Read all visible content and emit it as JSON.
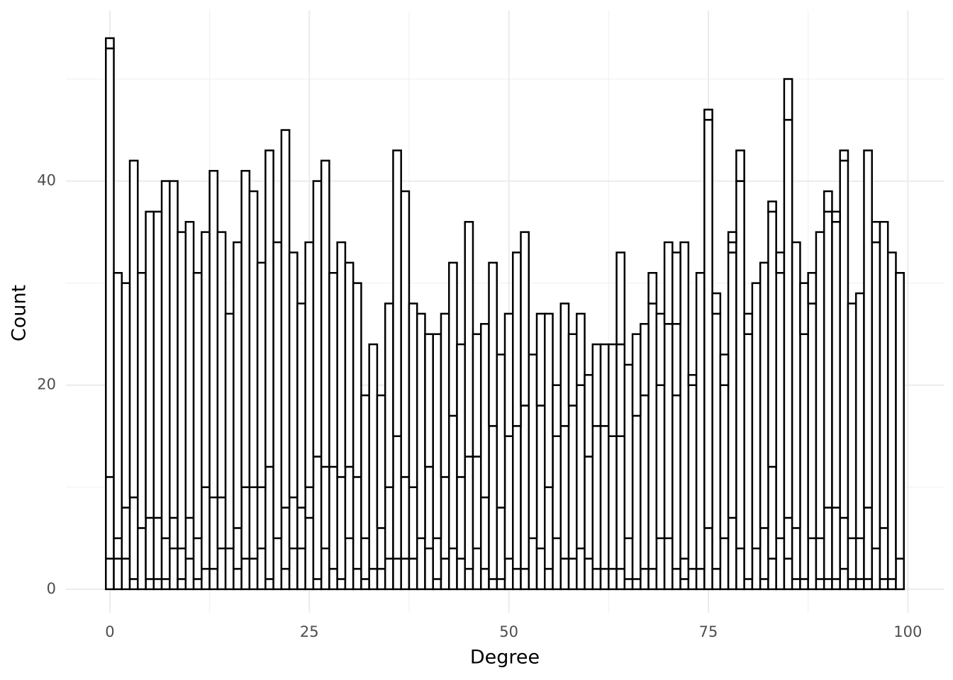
{
  "chart_data": {
    "type": "histogram",
    "x_label": "Degree",
    "y_label": "Count",
    "bins": [
      -0.5,
      0.5,
      1.5,
      2.5,
      3.5,
      4.5,
      5.5,
      6.5,
      7.5,
      8.5,
      9.5,
      10.5,
      11.5,
      12.5,
      13.5,
      14.5,
      15.5,
      16.5,
      17.5,
      18.5,
      19.5,
      20.5,
      21.5,
      22.5,
      23.5,
      24.5,
      25.5,
      26.5,
      27.5,
      28.5,
      29.5,
      30.5,
      31.5,
      32.5,
      33.5,
      34.5,
      35.5,
      36.5,
      37.5,
      38.5,
      39.5,
      40.5,
      41.5,
      42.5,
      43.5,
      44.5,
      45.5,
      46.5,
      47.5,
      48.5,
      49.5,
      50.5,
      51.5,
      52.5,
      53.5,
      54.5,
      55.5,
      56.5,
      57.5,
      58.5,
      59.5,
      60.5,
      61.5,
      62.5,
      63.5,
      64.5,
      65.5,
      66.5,
      67.5,
      68.5,
      69.5,
      70.5,
      71.5,
      72.5,
      73.5,
      74.5,
      75.5,
      76.5,
      77.5,
      78.5,
      79.5,
      80.5,
      81.5,
      82.5,
      83.5,
      84.5,
      85.5,
      86.5,
      87.5,
      88.5,
      89.5,
      90.5,
      91.5,
      92.5,
      93.5,
      94.5,
      95.5,
      96.5,
      97.5,
      98.5,
      99.5
    ],
    "series": [
      {
        "color": "#ffffff",
        "values": [
          3,
          3,
          3,
          1,
          0,
          1,
          1,
          1,
          4,
          1,
          3,
          1,
          2,
          2,
          4,
          4,
          2,
          3,
          3,
          4,
          1,
          5,
          2,
          4,
          4,
          7,
          1,
          4,
          2,
          1,
          5,
          2,
          1,
          0,
          2,
          3,
          3,
          3,
          3,
          5,
          4,
          1,
          3,
          4,
          3,
          2,
          4,
          2,
          1,
          1,
          3,
          2,
          2,
          5,
          4,
          2,
          5,
          3,
          3,
          4,
          3,
          2,
          2,
          2,
          2,
          1,
          1,
          2,
          2,
          5,
          5,
          2,
          1,
          2,
          2,
          6,
          2,
          5,
          7,
          4,
          1,
          4,
          1,
          3,
          5,
          3,
          1,
          1,
          5,
          1,
          1,
          1,
          2,
          1,
          1,
          1,
          4,
          1,
          1,
          3
        ]
      },
      {
        "color": "#ffffff",
        "values": [
          8,
          2,
          5,
          8,
          6,
          6,
          6,
          4,
          3,
          3,
          4,
          4,
          8,
          7,
          5,
          0,
          4,
          7,
          7,
          6,
          11,
          0,
          6,
          5,
          4,
          3,
          12,
          8,
          10,
          10,
          7,
          9,
          4,
          2,
          4,
          7,
          12,
          8,
          7,
          0,
          8,
          4,
          8,
          13,
          8,
          11,
          9,
          7,
          15,
          7,
          12,
          14,
          16,
          0,
          14,
          8,
          10,
          13,
          15,
          16,
          10,
          14,
          14,
          13,
          13,
          4,
          16,
          17,
          26,
          15,
          21,
          17,
          2,
          18,
          0,
          0,
          25,
          15,
          26,
          0,
          24,
          0,
          5,
          9,
          26,
          4,
          5,
          24,
          23,
          4,
          7,
          7,
          5,
          4,
          4,
          7,
          30,
          5,
          0,
          0
        ]
      },
      {
        "color": "#ffffff",
        "values": [
          42,
          26,
          22,
          33,
          25,
          30,
          30,
          35,
          33,
          31,
          29,
          26,
          25,
          32,
          26,
          23,
          28,
          31,
          29,
          22,
          31,
          29,
          37,
          24,
          20,
          24,
          27,
          30,
          19,
          23,
          20,
          19,
          14,
          22,
          13,
          18,
          28,
          28,
          18,
          22,
          13,
          20,
          16,
          15,
          13,
          23,
          12,
          17,
          16,
          15,
          12,
          17,
          17,
          18,
          9,
          17,
          5,
          12,
          7,
          7,
          8,
          8,
          8,
          9,
          9,
          17,
          8,
          7,
          3,
          7,
          8,
          7,
          31,
          1,
          29,
          40,
          2,
          3,
          1,
          36,
          2,
          26,
          26,
          25,
          2,
          39,
          28,
          5,
          3,
          30,
          29,
          28,
          35,
          23,
          24,
          35,
          2,
          30,
          32,
          28
        ]
      },
      {
        "color": "#ffffff",
        "values": [
          1,
          0,
          0,
          0,
          0,
          0,
          0,
          0,
          0,
          0,
          0,
          0,
          0,
          0,
          0,
          0,
          0,
          0,
          0,
          0,
          0,
          0,
          0,
          0,
          0,
          0,
          0,
          0,
          0,
          0,
          0,
          0,
          0,
          0,
          0,
          0,
          0,
          0,
          0,
          0,
          0,
          0,
          0,
          0,
          0,
          0,
          0,
          0,
          0,
          0,
          0,
          0,
          0,
          0,
          0,
          0,
          0,
          0,
          0,
          0,
          0,
          0,
          0,
          0,
          9,
          0,
          0,
          0,
          0,
          0,
          0,
          7,
          0,
          0,
          0,
          1,
          0,
          0,
          1,
          3,
          0,
          0,
          0,
          1,
          0,
          4,
          0,
          0,
          0,
          0,
          2,
          1,
          1,
          0,
          0,
          0,
          0,
          0,
          0,
          0
        ]
      }
    ],
    "edge_color": "#000000",
    "xlim": [
      -5.5,
      104.5
    ],
    "xticks": [
      0,
      25,
      50,
      75,
      100
    ],
    "ylim": [
      -2.3,
      56.7
    ],
    "yticks": [
      0,
      20,
      40
    ],
    "grid": true,
    "minor_grid": true
  }
}
